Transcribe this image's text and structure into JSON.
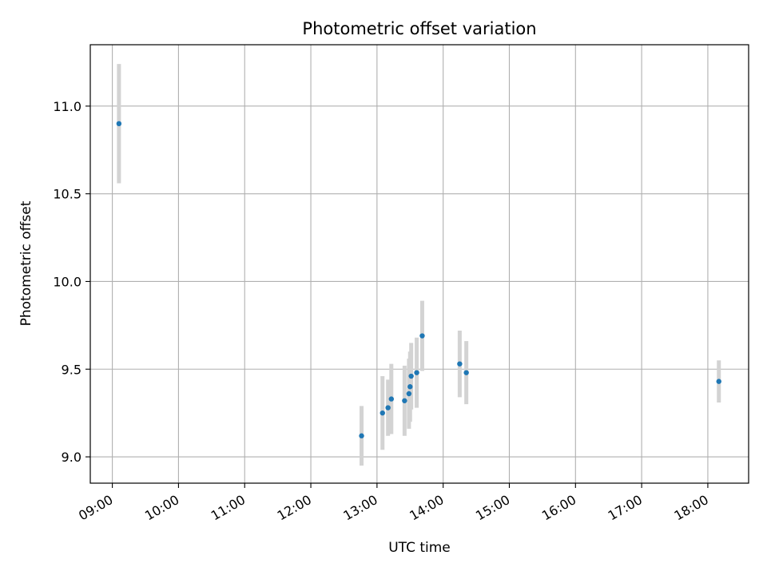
{
  "chart_data": {
    "type": "scatter",
    "title": "Photometric offset variation",
    "xlabel": "UTC time",
    "ylabel": "Photometric offset",
    "xlim": [
      "08:40",
      "18:37"
    ],
    "ylim": [
      8.85,
      11.35
    ],
    "x_ticks": [
      "09:00",
      "10:00",
      "11:00",
      "12:00",
      "13:00",
      "14:00",
      "15:00",
      "16:00",
      "17:00",
      "18:00"
    ],
    "y_ticks": [
      "9.0",
      "9.5",
      "10.0",
      "10.5",
      "11.0"
    ],
    "grid": true,
    "point_color": "#1f77b4",
    "errorbar_color": "#d3d3d3",
    "points": [
      {
        "x": "09:06",
        "y": 10.9,
        "err": 0.34
      },
      {
        "x": "12:46",
        "y": 9.12,
        "err": 0.17
      },
      {
        "x": "13:05",
        "y": 9.25,
        "err": 0.21
      },
      {
        "x": "13:10",
        "y": 9.28,
        "err": 0.16
      },
      {
        "x": "13:13",
        "y": 9.33,
        "err": 0.2
      },
      {
        "x": "13:25",
        "y": 9.32,
        "err": 0.2
      },
      {
        "x": "13:29",
        "y": 9.36,
        "err": 0.2
      },
      {
        "x": "13:30",
        "y": 9.4,
        "err": 0.2
      },
      {
        "x": "13:31",
        "y": 9.46,
        "err": 0.19
      },
      {
        "x": "13:36",
        "y": 9.48,
        "err": 0.2
      },
      {
        "x": "13:41",
        "y": 9.69,
        "err": 0.2
      },
      {
        "x": "14:15",
        "y": 9.53,
        "err": 0.19
      },
      {
        "x": "14:21",
        "y": 9.48,
        "err": 0.18
      },
      {
        "x": "18:10",
        "y": 9.43,
        "err": 0.12
      }
    ]
  }
}
